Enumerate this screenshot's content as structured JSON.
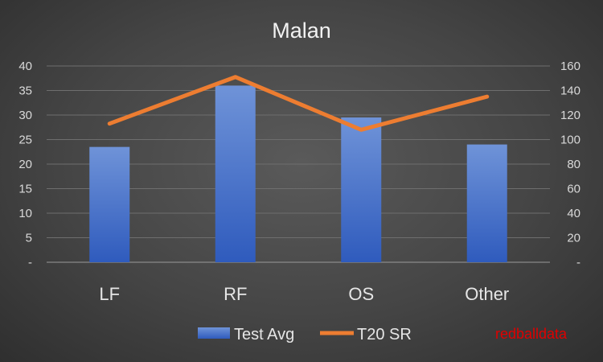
{
  "chart_data": {
    "type": "bar",
    "title": "Malan",
    "categories": [
      "LF",
      "RF",
      "OS",
      "Other"
    ],
    "series": [
      {
        "name": "Test Avg",
        "chart": "bar",
        "axis": "left",
        "values": [
          23.5,
          36.0,
          29.5,
          24.0
        ],
        "color": "#4472c4"
      },
      {
        "name": "T20 SR",
        "chart": "line",
        "axis": "right",
        "values": [
          113,
          151,
          108,
          135
        ],
        "color": "#ed7d31"
      }
    ],
    "ylim": [
      0,
      40
    ],
    "y_ticks": [
      "-",
      "5",
      "10",
      "15",
      "20",
      "25",
      "30",
      "35",
      "40"
    ],
    "y2lim": [
      0,
      160
    ],
    "y2_ticks": [
      "-",
      "20",
      "40",
      "60",
      "80",
      "100",
      "120",
      "140",
      "160"
    ],
    "grid": true,
    "legend_position": "bottom",
    "watermark": "redballdata"
  }
}
